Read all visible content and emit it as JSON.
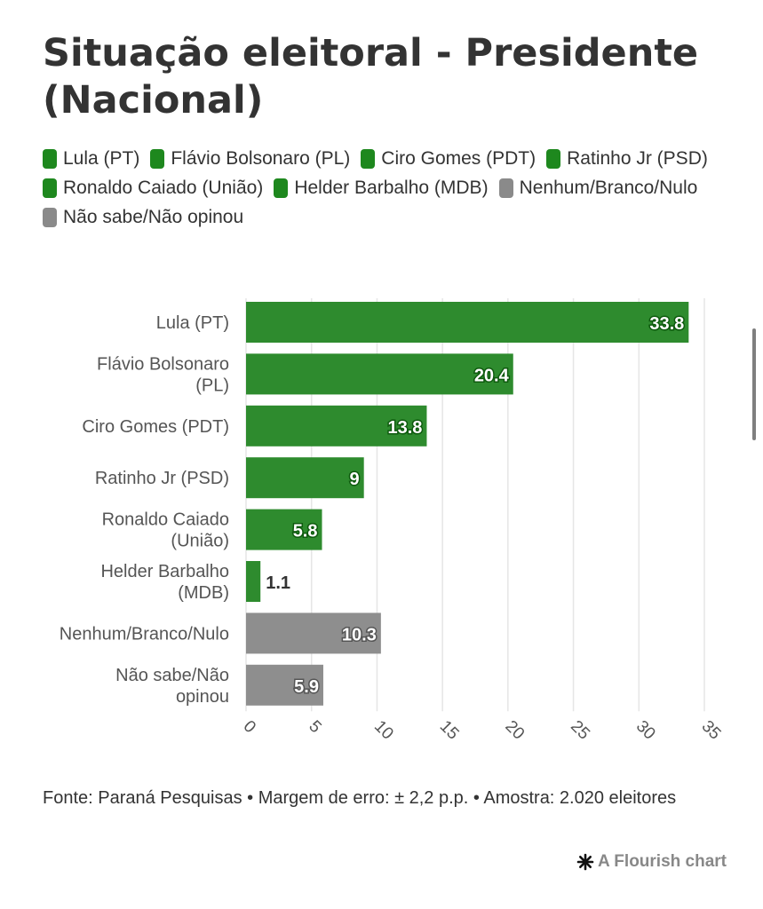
{
  "title": "Situação eleitoral - Presidente (Nacional)",
  "legend": [
    {
      "label": "Lula (PT)",
      "color": "#1e881e"
    },
    {
      "label": "Flávio Bolsonaro (PL)",
      "color": "#1e881e"
    },
    {
      "label": "Ciro Gomes (PDT)",
      "color": "#1e881e"
    },
    {
      "label": "Ratinho Jr (PSD)",
      "color": "#1e881e"
    },
    {
      "label": "Ronaldo Caiado (União)",
      "color": "#1e881e"
    },
    {
      "label": "Helder Barbalho (MDB)",
      "color": "#1e881e"
    },
    {
      "label": "Nenhum/Branco/Nulo",
      "color": "#8a8a8a"
    },
    {
      "label": "Não sabe/Não opinou",
      "color": "#8a8a8a"
    }
  ],
  "chart_data": {
    "type": "bar",
    "orientation": "horizontal",
    "categories": [
      "Lula (PT)",
      "Flávio Bolsonaro (PL)",
      "Ciro Gomes (PDT)",
      "Ratinho Jr (PSD)",
      "Ronaldo Caiado (União)",
      "Helder Barbalho (MDB)",
      "Nenhum/Branco/Nulo",
      "Não sabe/Não opinou"
    ],
    "values": [
      33.8,
      20.4,
      13.8,
      9,
      5.8,
      1.1,
      10.3,
      5.9
    ],
    "value_labels": [
      "33.8",
      "20.4",
      "13.8",
      "9",
      "5.8",
      "1.1",
      "10.3",
      "5.9"
    ],
    "colors": [
      "#2e8b2e",
      "#2e8b2e",
      "#2e8b2e",
      "#2e8b2e",
      "#2e8b2e",
      "#2e8b2e",
      "#8e8e8e",
      "#8e8e8e"
    ],
    "xlim": [
      0,
      35
    ],
    "xticks": [
      0,
      5,
      10,
      15,
      20,
      25,
      30,
      35
    ],
    "grid": true,
    "legend_position": "top"
  },
  "footer": {
    "source": "Fonte: Paraná Pesquisas • Margem de erro: ± 2,2 p.p. • Amostra: 2.020 eleitores",
    "credit": "A Flourish chart"
  }
}
